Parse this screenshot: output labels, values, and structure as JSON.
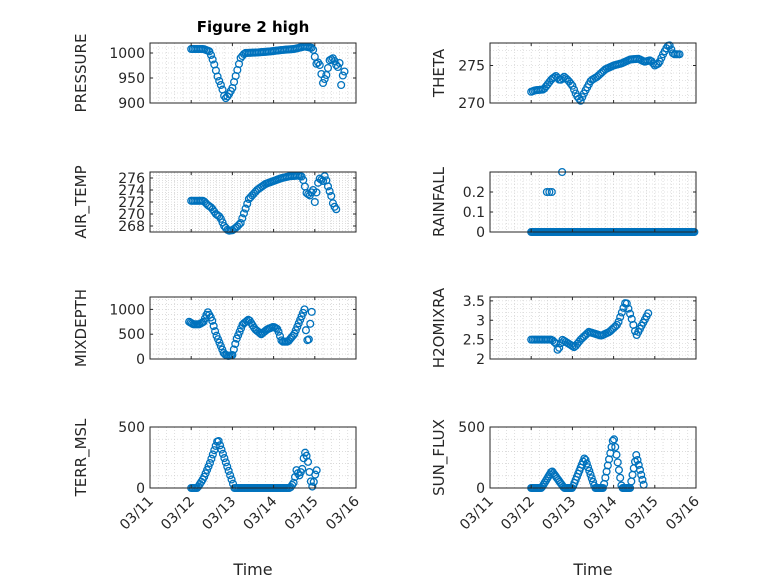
{
  "figure": {
    "title": "Figure 2 high",
    "marker_color": "#0072BD"
  },
  "chart_data": [
    {
      "type": "scatter",
      "id": "pressure",
      "title": "Figure 2 high",
      "xlabel": "",
      "ylabel": "PRESSURE",
      "xlim": [
        0,
        5
      ],
      "ylim": [
        900,
        1020
      ],
      "yticks": [
        900,
        950,
        1000
      ],
      "xticks": [
        0,
        1,
        2,
        3,
        4,
        5
      ],
      "xticklabels": [
        "03/11",
        "03/12",
        "03/13",
        "03/14",
        "03/15",
        "03/16"
      ],
      "anchors": [
        [
          1.0,
          1008
        ],
        [
          1.3,
          1008
        ],
        [
          1.45,
          1003
        ],
        [
          1.55,
          980
        ],
        [
          1.65,
          950
        ],
        [
          1.75,
          930
        ],
        [
          1.82,
          908
        ],
        [
          1.9,
          915
        ],
        [
          2.0,
          930
        ],
        [
          2.1,
          960
        ],
        [
          2.2,
          990
        ],
        [
          2.3,
          1000
        ],
        [
          2.6,
          1001
        ],
        [
          2.9,
          1003
        ],
        [
          3.2,
          1006
        ],
        [
          3.5,
          1008
        ],
        [
          3.75,
          1013
        ],
        [
          3.95,
          1010
        ],
        [
          4.05,
          975
        ],
        [
          4.1,
          985
        ],
        [
          4.2,
          940
        ],
        [
          4.3,
          960
        ],
        [
          4.35,
          985
        ],
        [
          4.45,
          990
        ],
        [
          4.55,
          970
        ],
        [
          4.6,
          980
        ],
        [
          4.65,
          925
        ],
        [
          4.7,
          975
        ],
        [
          4.75,
          945
        ]
      ],
      "step": 0.04
    },
    {
      "type": "scatter",
      "id": "theta",
      "title": "",
      "xlabel": "",
      "ylabel": "THETA",
      "xlim": [
        0,
        5
      ],
      "ylim": [
        270,
        278
      ],
      "yticks": [
        270,
        275
      ],
      "xticks": [
        0,
        1,
        2,
        3,
        4,
        5
      ],
      "xticklabels": [
        "03/11",
        "03/12",
        "03/13",
        "03/14",
        "03/15",
        "03/16"
      ],
      "anchors": [
        [
          1.0,
          271.5
        ],
        [
          1.1,
          271.7
        ],
        [
          1.3,
          271.8
        ],
        [
          1.4,
          272.5
        ],
        [
          1.5,
          273.2
        ],
        [
          1.6,
          273.6
        ],
        [
          1.7,
          273.0
        ],
        [
          1.8,
          273.5
        ],
        [
          1.9,
          273.0
        ],
        [
          2.0,
          272.3
        ],
        [
          2.1,
          271.0
        ],
        [
          2.2,
          270.3
        ],
        [
          2.3,
          271.5
        ],
        [
          2.45,
          273.0
        ],
        [
          2.6,
          273.5
        ],
        [
          2.8,
          274.5
        ],
        [
          3.0,
          275.0
        ],
        [
          3.2,
          275.3
        ],
        [
          3.4,
          275.8
        ],
        [
          3.6,
          275.9
        ],
        [
          3.75,
          275.5
        ],
        [
          3.9,
          275.7
        ],
        [
          4.0,
          275.0
        ],
        [
          4.1,
          275.3
        ],
        [
          4.2,
          276.5
        ],
        [
          4.3,
          277.5
        ],
        [
          4.35,
          277.8
        ],
        [
          4.45,
          276.5
        ],
        [
          4.6,
          276.5
        ]
      ],
      "step": 0.04
    },
    {
      "type": "scatter",
      "id": "air-temp",
      "title": "",
      "xlabel": "",
      "ylabel": "AIR_TEMP",
      "xlim": [
        0,
        5
      ],
      "ylim": [
        267,
        277
      ],
      "yticks": [
        268,
        270,
        272,
        274,
        276
      ],
      "xticks": [
        0,
        1,
        2,
        3,
        4,
        5
      ],
      "xticklabels": [
        "03/11",
        "03/12",
        "03/13",
        "03/14",
        "03/15",
        "03/16"
      ],
      "anchors": [
        [
          1.0,
          272.2
        ],
        [
          1.3,
          272.2
        ],
        [
          1.4,
          271.5
        ],
        [
          1.5,
          271.0
        ],
        [
          1.6,
          270.0
        ],
        [
          1.7,
          269.5
        ],
        [
          1.8,
          268.0
        ],
        [
          1.9,
          267.2
        ],
        [
          2.0,
          267.3
        ],
        [
          2.1,
          267.8
        ],
        [
          2.2,
          268.5
        ],
        [
          2.3,
          270.5
        ],
        [
          2.4,
          272.5
        ],
        [
          2.6,
          274.0
        ],
        [
          2.8,
          275.0
        ],
        [
          3.0,
          275.5
        ],
        [
          3.2,
          276.0
        ],
        [
          3.4,
          276.3
        ],
        [
          3.6,
          276.4
        ],
        [
          3.7,
          276.2
        ],
        [
          3.8,
          273.5
        ],
        [
          3.9,
          273.0
        ],
        [
          3.95,
          274.5
        ],
        [
          4.0,
          272.0
        ],
        [
          4.1,
          276.0
        ],
        [
          4.2,
          275.5
        ],
        [
          4.25,
          276.5
        ],
        [
          4.3,
          275.0
        ],
        [
          4.4,
          273.0
        ],
        [
          4.45,
          271.5
        ],
        [
          4.55,
          270.5
        ]
      ],
      "step": 0.04
    },
    {
      "type": "scatter",
      "id": "rainfall",
      "title": "",
      "xlabel": "",
      "ylabel": "RAINFALL",
      "xlim": [
        0,
        5
      ],
      "ylim": [
        0,
        0.3
      ],
      "yticks": [
        0,
        0.1,
        0.2
      ],
      "xticks": [
        0,
        1,
        2,
        3,
        4,
        5
      ],
      "xticklabels": [
        "03/11",
        "03/12",
        "03/13",
        "03/14",
        "03/15",
        "03/16"
      ],
      "anchors": [
        [
          1.0,
          0
        ],
        [
          4.98,
          0
        ]
      ],
      "step": 0.03,
      "extra": [
        [
          1.38,
          0.2
        ],
        [
          1.44,
          0.2
        ],
        [
          1.5,
          0.2
        ],
        [
          1.75,
          0.3
        ]
      ]
    },
    {
      "type": "scatter",
      "id": "mixdepth",
      "title": "",
      "xlabel": "",
      "ylabel": "MIXDEPTH",
      "xlim": [
        0,
        5
      ],
      "ylim": [
        0,
        1250
      ],
      "yticks": [
        0,
        500,
        1000
      ],
      "xticks": [
        0,
        1,
        2,
        3,
        4,
        5
      ],
      "xticklabels": [
        "03/11",
        "03/12",
        "03/13",
        "03/14",
        "03/15",
        "03/16"
      ],
      "anchors": [
        [
          0.95,
          750
        ],
        [
          1.05,
          700
        ],
        [
          1.2,
          700
        ],
        [
          1.3,
          750
        ],
        [
          1.4,
          950
        ],
        [
          1.5,
          800
        ],
        [
          1.6,
          500
        ],
        [
          1.7,
          300
        ],
        [
          1.8,
          100
        ],
        [
          1.9,
          60
        ],
        [
          2.0,
          80
        ],
        [
          2.1,
          400
        ],
        [
          2.25,
          700
        ],
        [
          2.4,
          800
        ],
        [
          2.55,
          600
        ],
        [
          2.7,
          500
        ],
        [
          2.85,
          600
        ],
        [
          3.0,
          650
        ],
        [
          3.1,
          600
        ],
        [
          3.2,
          350
        ],
        [
          3.35,
          350
        ],
        [
          3.5,
          500
        ],
        [
          3.65,
          800
        ],
        [
          3.75,
          1000
        ],
        [
          3.8,
          400
        ],
        [
          3.85,
          350
        ],
        [
          3.9,
          800
        ],
        [
          3.95,
          1100
        ]
      ],
      "step": 0.035
    },
    {
      "type": "scatter",
      "id": "h2o-mixratio",
      "title": "",
      "xlabel": "",
      "ylabel": "H2OMIXRA",
      "xlim": [
        0,
        5
      ],
      "ylim": [
        2,
        3.6
      ],
      "yticks": [
        2,
        2.5,
        3,
        3.5
      ],
      "xticks": [
        0,
        1,
        2,
        3,
        4,
        5
      ],
      "xticklabels": [
        "03/11",
        "03/12",
        "03/13",
        "03/14",
        "03/15",
        "03/16"
      ],
      "anchors": [
        [
          1.0,
          2.5
        ],
        [
          1.5,
          2.5
        ],
        [
          1.6,
          2.4
        ],
        [
          1.65,
          2.2
        ],
        [
          1.75,
          2.5
        ],
        [
          1.9,
          2.4
        ],
        [
          2.05,
          2.3
        ],
        [
          2.2,
          2.5
        ],
        [
          2.4,
          2.7
        ],
        [
          2.7,
          2.6
        ],
        [
          2.9,
          2.7
        ],
        [
          3.1,
          2.9
        ],
        [
          3.2,
          3.2
        ],
        [
          3.3,
          3.5
        ],
        [
          3.45,
          3.0
        ],
        [
          3.55,
          2.6
        ],
        [
          3.65,
          2.8
        ],
        [
          3.75,
          3.0
        ],
        [
          3.85,
          3.2
        ]
      ],
      "step": 0.04
    },
    {
      "type": "scatter",
      "id": "terr-msl",
      "title": "",
      "xlabel": "Time",
      "ylabel": "TERR_MSL",
      "xlim": [
        0,
        5
      ],
      "ylim": [
        0,
        500
      ],
      "yticks": [
        0,
        500
      ],
      "xticks": [
        0,
        1,
        2,
        3,
        4,
        5
      ],
      "xticklabels": [
        "03/11",
        "03/12",
        "03/13",
        "03/14",
        "03/15",
        "03/16"
      ],
      "anchors": [
        [
          1.0,
          0
        ],
        [
          1.15,
          0
        ],
        [
          1.3,
          80
        ],
        [
          1.45,
          200
        ],
        [
          1.55,
          300
        ],
        [
          1.65,
          400
        ],
        [
          1.75,
          300
        ],
        [
          1.85,
          200
        ],
        [
          1.95,
          100
        ],
        [
          2.05,
          0
        ],
        [
          3.4,
          0
        ],
        [
          3.5,
          50
        ],
        [
          3.55,
          150
        ],
        [
          3.62,
          100
        ],
        [
          3.7,
          160
        ],
        [
          3.75,
          300
        ],
        [
          3.82,
          250
        ],
        [
          3.9,
          60
        ],
        [
          3.95,
          0
        ],
        [
          4.0,
          100
        ],
        [
          4.05,
          150
        ]
      ],
      "step": 0.035
    },
    {
      "type": "scatter",
      "id": "sun-flux",
      "title": "",
      "xlabel": "Time",
      "ylabel": "SUN_FLUX",
      "xlim": [
        0,
        5
      ],
      "ylim": [
        0,
        500
      ],
      "yticks": [
        0,
        500
      ],
      "xticks": [
        0,
        1,
        2,
        3,
        4,
        5
      ],
      "xticklabels": [
        "03/11",
        "03/12",
        "03/13",
        "03/14",
        "03/15",
        "03/16"
      ],
      "anchors": [
        [
          1.0,
          0
        ],
        [
          1.25,
          0
        ],
        [
          1.5,
          140
        ],
        [
          1.8,
          0
        ],
        [
          2.0,
          0
        ],
        [
          2.3,
          250
        ],
        [
          2.55,
          0
        ],
        [
          2.75,
          0
        ],
        [
          3.0,
          420
        ],
        [
          3.2,
          0
        ],
        [
          3.4,
          0
        ],
        [
          3.55,
          270
        ],
        [
          3.75,
          0
        ]
      ],
      "step": 0.03
    }
  ]
}
